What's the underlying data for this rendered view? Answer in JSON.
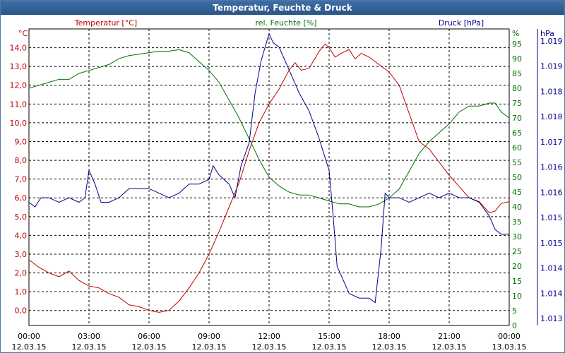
{
  "chart_data": {
    "type": "line",
    "title": "Temperatur, Feuchte & Druck",
    "axes": {
      "temp": {
        "header": "Temperatur [°C]",
        "unit": "°C",
        "color": "#c00000",
        "range": [
          -0.8,
          15.0
        ],
        "ticks": [
          "0,0",
          "1,0",
          "2,0",
          "3,0",
          "4,0",
          "5,0",
          "6,0",
          "7,0",
          "8,0",
          "9,0",
          "10,0",
          "11,0",
          "12,0",
          "13,0",
          "14,0"
        ]
      },
      "hum": {
        "header": "rel. Feuchte [%]",
        "unit": "%",
        "color": "#007000",
        "range": [
          0,
          100
        ],
        "ticks": [
          "0",
          "5",
          "10",
          "15",
          "20",
          "25",
          "30",
          "35",
          "40",
          "45",
          "50",
          "55",
          "60",
          "65",
          "70",
          "75",
          "80",
          "85",
          "90",
          "95"
        ]
      },
      "press": {
        "header": "Druck [hPa]",
        "unit": "hPa",
        "color": "#00008b",
        "range": [
          1012.8,
          1019.3
        ],
        "ticks": [
          "1.013",
          "1.014",
          "1.014",
          "1.015",
          "1.015",
          "1.016",
          "1.016",
          "1.017",
          "1.018",
          "1.018",
          "1.019",
          "1.019"
        ]
      }
    },
    "x_ticks": [
      {
        "time": "00:00",
        "date": "12.03.15"
      },
      {
        "time": "03:00",
        "date": "12.03.15"
      },
      {
        "time": "06:00",
        "date": "12.03.15"
      },
      {
        "time": "09:00",
        "date": "12.03.15"
      },
      {
        "time": "12:00",
        "date": "12.03.15"
      },
      {
        "time": "15:00",
        "date": "12.03.15"
      },
      {
        "time": "18:00",
        "date": "12.03.15"
      },
      {
        "time": "21:00",
        "date": "12.03.15"
      },
      {
        "time": "00:00",
        "date": "13.03.15"
      }
    ],
    "x_range_hours": [
      0,
      24
    ],
    "grid": true,
    "series": [
      {
        "name": "Temperatur [°C]",
        "axis": "temp",
        "color": "#c00000",
        "points": [
          [
            0,
            2.7
          ],
          [
            0.5,
            2.3
          ],
          [
            1,
            2.0
          ],
          [
            1.5,
            1.8
          ],
          [
            2,
            2.1
          ],
          [
            2.5,
            1.6
          ],
          [
            3,
            1.3
          ],
          [
            3.5,
            1.2
          ],
          [
            4,
            0.9
          ],
          [
            4.5,
            0.7
          ],
          [
            5,
            0.3
          ],
          [
            5.5,
            0.2
          ],
          [
            6,
            0.0
          ],
          [
            6.5,
            -0.1
          ],
          [
            7,
            0.0
          ],
          [
            7.5,
            0.5
          ],
          [
            8,
            1.2
          ],
          [
            8.5,
            2.0
          ],
          [
            9,
            3.0
          ],
          [
            9.5,
            4.2
          ],
          [
            10,
            5.5
          ],
          [
            10.5,
            6.8
          ],
          [
            11,
            8.5
          ],
          [
            11.5,
            10.0
          ],
          [
            12,
            11.0
          ],
          [
            12.5,
            11.8
          ],
          [
            13,
            12.8
          ],
          [
            13.3,
            13.2
          ],
          [
            13.6,
            12.8
          ],
          [
            14,
            12.9
          ],
          [
            14.5,
            13.8
          ],
          [
            14.8,
            14.2
          ],
          [
            15,
            14.0
          ],
          [
            15.3,
            13.5
          ],
          [
            15.6,
            13.7
          ],
          [
            16,
            13.9
          ],
          [
            16.3,
            13.4
          ],
          [
            16.6,
            13.7
          ],
          [
            17,
            13.5
          ],
          [
            17.5,
            13.1
          ],
          [
            18,
            12.7
          ],
          [
            18.5,
            12.0
          ],
          [
            19,
            10.5
          ],
          [
            19.5,
            9.0
          ],
          [
            20,
            8.6
          ],
          [
            20.5,
            7.9
          ],
          [
            21,
            7.2
          ],
          [
            21.5,
            6.6
          ],
          [
            22,
            6.0
          ],
          [
            22.5,
            5.8
          ],
          [
            23,
            5.2
          ],
          [
            23.3,
            5.3
          ],
          [
            23.6,
            5.7
          ],
          [
            24,
            5.8
          ]
        ]
      },
      {
        "name": "rel. Feuchte [%]",
        "axis": "hum",
        "color": "#007000",
        "points": [
          [
            0,
            80
          ],
          [
            0.5,
            81
          ],
          [
            1,
            82
          ],
          [
            1.5,
            83
          ],
          [
            2,
            83
          ],
          [
            2.5,
            85
          ],
          [
            3,
            86
          ],
          [
            3.5,
            87
          ],
          [
            4,
            88
          ],
          [
            4.5,
            90
          ],
          [
            5,
            91
          ],
          [
            5.5,
            91.5
          ],
          [
            6,
            92
          ],
          [
            6.5,
            92.5
          ],
          [
            7,
            92.5
          ],
          [
            7.5,
            93
          ],
          [
            8,
            92
          ],
          [
            8.5,
            89
          ],
          [
            9,
            86
          ],
          [
            9.5,
            82
          ],
          [
            10,
            76
          ],
          [
            10.5,
            70
          ],
          [
            11,
            63
          ],
          [
            11.5,
            56
          ],
          [
            12,
            50
          ],
          [
            12.5,
            47
          ],
          [
            13,
            45
          ],
          [
            13.5,
            44
          ],
          [
            14,
            44
          ],
          [
            14.5,
            43
          ],
          [
            15,
            42
          ],
          [
            15.5,
            41
          ],
          [
            16,
            41
          ],
          [
            16.5,
            40
          ],
          [
            17,
            40
          ],
          [
            17.5,
            41
          ],
          [
            18,
            43
          ],
          [
            18.5,
            46
          ],
          [
            19,
            52
          ],
          [
            19.5,
            58
          ],
          [
            20,
            62
          ],
          [
            20.5,
            65
          ],
          [
            21,
            68
          ],
          [
            21.5,
            72
          ],
          [
            22,
            74
          ],
          [
            22.5,
            74
          ],
          [
            23,
            75
          ],
          [
            23.3,
            75
          ],
          [
            23.6,
            72
          ],
          [
            24,
            70
          ]
        ]
      },
      {
        "name": "Druck [hPa]",
        "axis": "press",
        "color": "#00008b",
        "points": [
          [
            0,
            1015.5
          ],
          [
            0.3,
            1015.4
          ],
          [
            0.6,
            1015.6
          ],
          [
            1,
            1015.6
          ],
          [
            1.5,
            1015.5
          ],
          [
            2,
            1015.6
          ],
          [
            2.5,
            1015.5
          ],
          [
            2.8,
            1015.6
          ],
          [
            3,
            1016.2
          ],
          [
            3.3,
            1015.9
          ],
          [
            3.6,
            1015.5
          ],
          [
            4,
            1015.5
          ],
          [
            4.5,
            1015.6
          ],
          [
            5,
            1015.8
          ],
          [
            5.5,
            1015.8
          ],
          [
            6,
            1015.8
          ],
          [
            6.5,
            1015.7
          ],
          [
            7,
            1015.6
          ],
          [
            7.5,
            1015.7
          ],
          [
            8,
            1015.9
          ],
          [
            8.5,
            1015.9
          ],
          [
            9,
            1016.0
          ],
          [
            9.2,
            1016.3
          ],
          [
            9.5,
            1016.1
          ],
          [
            10,
            1015.9
          ],
          [
            10.3,
            1015.6
          ],
          [
            10.6,
            1016.3
          ],
          [
            11,
            1016.8
          ],
          [
            11.3,
            1017.9
          ],
          [
            11.6,
            1018.6
          ],
          [
            12,
            1019.2
          ],
          [
            12.2,
            1019.0
          ],
          [
            12.5,
            1018.9
          ],
          [
            12.8,
            1018.6
          ],
          [
            13.1,
            1018.3
          ],
          [
            13.5,
            1017.9
          ],
          [
            14,
            1017.5
          ],
          [
            14.5,
            1016.9
          ],
          [
            15,
            1016.2
          ],
          [
            15.2,
            1015.2
          ],
          [
            15.4,
            1014.1
          ],
          [
            15.6,
            1013.9
          ],
          [
            16,
            1013.5
          ],
          [
            16.5,
            1013.4
          ],
          [
            17,
            1013.4
          ],
          [
            17.3,
            1013.3
          ],
          [
            17.6,
            1014.5
          ],
          [
            17.8,
            1015.7
          ],
          [
            18,
            1015.6
          ],
          [
            18.5,
            1015.6
          ],
          [
            19,
            1015.5
          ],
          [
            19.5,
            1015.6
          ],
          [
            20,
            1015.7
          ],
          [
            20.5,
            1015.6
          ],
          [
            21,
            1015.7
          ],
          [
            21.5,
            1015.6
          ],
          [
            22,
            1015.6
          ],
          [
            22.5,
            1015.5
          ],
          [
            23,
            1015.2
          ],
          [
            23.3,
            1014.9
          ],
          [
            23.6,
            1014.8
          ],
          [
            24,
            1014.8
          ]
        ]
      }
    ]
  }
}
